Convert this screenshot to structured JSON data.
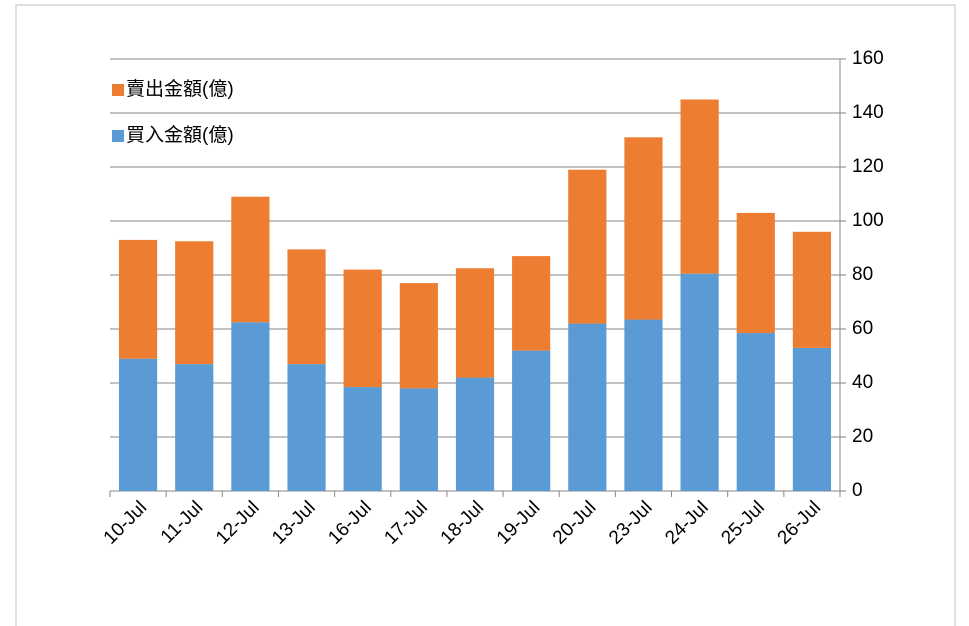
{
  "chart_data": {
    "type": "stacked-bar",
    "categories": [
      "10-Jul",
      "11-Jul",
      "12-Jul",
      "13-Jul",
      "16-Jul",
      "17-Jul",
      "18-Jul",
      "19-Jul",
      "20-Jul",
      "23-Jul",
      "24-Jul",
      "25-Jul",
      "26-Jul"
    ],
    "series": [
      {
        "name": "買入金額(億)",
        "color": "#5b9bd5",
        "values": [
          49,
          47,
          62.5,
          47,
          38.5,
          38,
          42,
          52,
          62,
          63.5,
          80.5,
          58.5,
          53
        ]
      },
      {
        "name": "賣出金額(億)",
        "color": "#ed7d31",
        "values": [
          44,
          45.5,
          46.5,
          42.5,
          43.5,
          39,
          40.5,
          35,
          57,
          67.5,
          64.5,
          44.5,
          43
        ]
      }
    ],
    "ylim": [
      0,
      160
    ],
    "yticks": [
      0,
      20,
      40,
      60,
      80,
      100,
      120,
      140,
      160
    ],
    "grid": true,
    "y_axis_side": "right",
    "legend": "top-left"
  }
}
